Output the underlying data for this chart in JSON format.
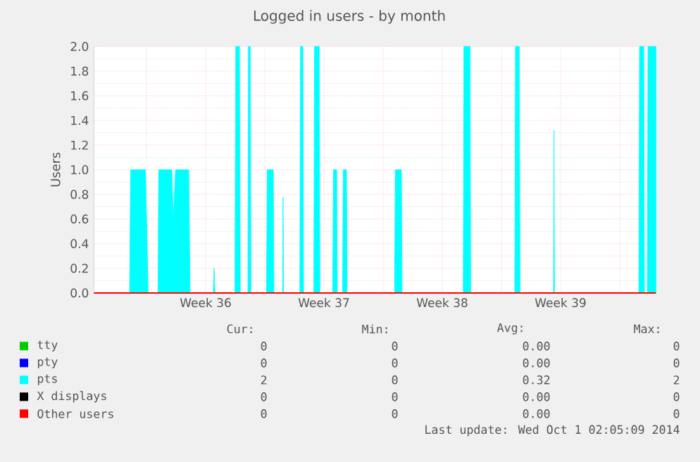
{
  "chart_data": {
    "type": "area",
    "title": "Logged in users - by month",
    "ylabel": "Users",
    "xlim": [
      "2014-08-28T21:22",
      "2014-10-01T03:22"
    ],
    "ylim": [
      0,
      2
    ],
    "xticks": [
      {
        "value": "2014-09-01",
        "label": null
      },
      {
        "value": "2014-09-04T12:00",
        "label": "Week 36"
      },
      {
        "value": "2014-09-08",
        "label": null
      },
      {
        "value": "2014-09-11T12:00",
        "label": "Week 37"
      },
      {
        "value": "2014-09-15",
        "label": null
      },
      {
        "value": "2014-09-18T12:00",
        "label": "Week 38"
      },
      {
        "value": "2014-09-22",
        "label": null
      },
      {
        "value": "2014-09-25T12:00",
        "label": "Week 39"
      },
      {
        "value": "2014-09-29",
        "label": null
      }
    ],
    "yticks": [
      {
        "value": 0,
        "label": "0.0"
      },
      {
        "value": 0.2,
        "label": "0.2"
      },
      {
        "value": 0.4,
        "label": "0.4"
      },
      {
        "value": 0.6,
        "label": "0.6"
      },
      {
        "value": 0.8,
        "label": "0.8"
      },
      {
        "value": 1,
        "label": "1.0"
      },
      {
        "value": 1.2,
        "label": "1.2"
      },
      {
        "value": 1.4,
        "label": "1.4"
      },
      {
        "value": 1.6,
        "label": "1.6"
      },
      {
        "value": 1.8,
        "label": "1.8"
      },
      {
        "value": 2,
        "label": "2.0"
      }
    ],
    "grid": true,
    "legend": "bottom",
    "series": [
      {
        "name": "tty",
        "type": "line",
        "color": "#00cc00"
      },
      {
        "name": "pty",
        "type": "line",
        "color": "#0000ff"
      },
      {
        "name": "pts",
        "color": "#00ffff",
        "x": [
          "2014-08-28T21:22",
          "2014-08-31T00:00",
          "2014-08-31T01:26",
          "2014-08-31T22:34",
          "2014-09-01T02:24",
          "2014-09-01T16:19",
          "2014-09-01T17:17",
          "2014-09-02T12:00",
          "2014-09-02T13:55",
          "2014-09-02T17:17",
          "2014-09-03T12:00",
          "2014-09-03T13:55",
          "2014-09-04T22:48",
          "2014-09-05T00:00",
          "2014-09-05T01:12",
          "2014-09-06T05:31",
          "2014-09-06T06:43",
          "2014-09-06T12:00",
          "2014-09-06T13:12",
          "2014-09-07T00:00",
          "2014-09-07T00:43",
          "2014-09-07T03:22",
          "2014-09-07T04:19",
          "2014-09-08T02:24",
          "2014-09-08T03:22",
          "2014-09-08T12:00",
          "2014-09-08T12:58",
          "2014-09-09T01:12",
          "2014-09-09T01:55",
          "2014-09-09T02:38",
          "2014-09-10T01:41",
          "2014-09-10T02:38",
          "2014-09-10T06:00",
          "2014-09-10T06:58",
          "2014-09-10T21:36",
          "2014-09-10T22:34",
          "2014-09-11T05:17",
          "2014-09-11T06:14",
          "2014-09-12T00:29",
          "2014-09-12T01:26",
          "2014-09-12T06:00",
          "2014-09-12T06:58",
          "2014-09-12T14:24",
          "2014-09-12T15:22",
          "2014-09-12T19:55",
          "2014-09-12T20:53",
          "2014-09-15T16:19",
          "2014-09-15T17:17",
          "2014-09-16T01:55",
          "2014-09-16T02:53",
          "2014-09-19T17:46",
          "2014-09-19T18:43",
          "2014-09-20T03:22",
          "2014-09-20T04:19",
          "2014-09-22T18:58",
          "2014-09-22T19:55",
          "2014-09-23T01:26",
          "2014-09-23T02:24",
          "2014-09-25T01:55",
          "2014-09-25T02:38",
          "2014-09-25T03:22",
          "2014-09-30T03:07",
          "2014-09-30T04:05",
          "2014-09-30T10:05",
          "2014-09-30T11:02",
          "2014-09-30T15:07",
          "2014-09-30T16:05",
          "2014-10-01T03:22"
        ],
        "values": [
          0,
          0,
          1,
          1,
          0,
          0,
          1,
          1,
          0.6,
          1,
          1,
          0,
          0,
          0.2,
          0,
          0,
          2,
          2,
          0,
          0,
          2,
          2,
          0,
          0,
          1,
          1,
          0,
          0,
          0.78,
          0,
          0,
          2,
          2,
          0,
          0,
          2,
          2,
          0,
          0,
          1,
          1,
          0,
          0,
          1,
          1,
          0,
          0,
          1,
          1,
          0,
          0,
          2,
          2,
          0,
          0,
          2,
          2,
          0,
          0,
          1.32,
          0,
          0,
          2,
          2,
          0,
          0,
          2,
          2
        ]
      },
      {
        "name": "X displays",
        "type": "line",
        "color": "#000000"
      },
      {
        "name": "Other users",
        "type": "line",
        "color": "#ff0000",
        "x": [
          "2014-08-28T21:22",
          "2014-10-01T03:22"
        ],
        "values": [
          0,
          0
        ]
      }
    ],
    "annotations": [
      "Cur:",
      "Min:",
      "Avg:",
      "Max:",
      "0",
      "0",
      "0.00",
      "0",
      "0",
      "0",
      "0.00",
      "0",
      "2",
      "0",
      "0.32",
      "2",
      "0",
      "0",
      "0.00",
      "0",
      "0",
      "0",
      "0.00",
      "0",
      "Last update: Wed Oct  1 02:05:09 2014"
    ]
  }
}
